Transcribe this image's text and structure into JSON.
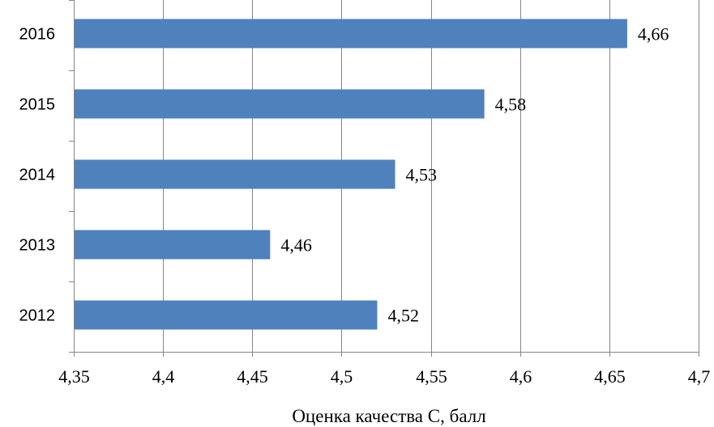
{
  "chart_data": {
    "type": "bar",
    "orientation": "horizontal",
    "categories": [
      "2016",
      "2015",
      "2014",
      "2013",
      "2012"
    ],
    "values": [
      4.66,
      4.58,
      4.53,
      4.46,
      4.52
    ],
    "value_labels": [
      "4,66",
      "4,58",
      "4,53",
      "4,46",
      "4,52"
    ],
    "xlabel": "Оценка качества С, балл",
    "ylabel": "",
    "xlim": [
      4.35,
      4.7
    ],
    "x_ticks": [
      4.35,
      4.4,
      4.45,
      4.5,
      4.55,
      4.6,
      4.65,
      4.7
    ],
    "x_tick_labels": [
      "4,35",
      "4,4",
      "4,45",
      "4,5",
      "4,55",
      "4,6",
      "4,65",
      "4,7"
    ],
    "grid": "vertical",
    "legend": "none",
    "bar_color": "#4F81BD",
    "grid_color": "#868686"
  }
}
